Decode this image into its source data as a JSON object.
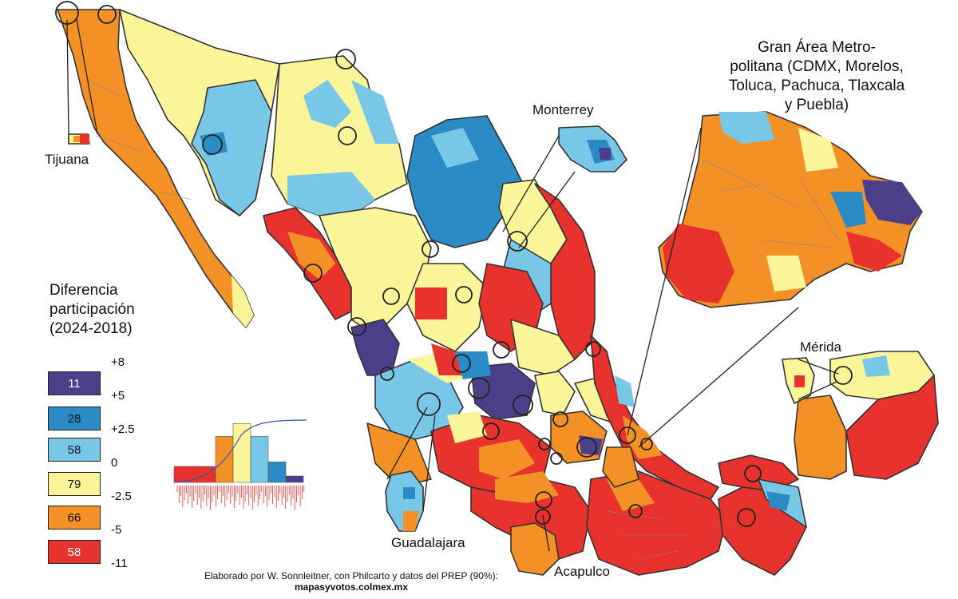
{
  "legend": {
    "title_lines": [
      "Diferencia",
      "participación",
      "(2024-2018)"
    ],
    "classes": [
      {
        "count": "11",
        "color": "#4b3f8a",
        "text_color": "#ffffff"
      },
      {
        "count": "28",
        "color": "#2b8bc4",
        "text_color": "#111111"
      },
      {
        "count": "58",
        "color": "#79c7e6",
        "text_color": "#111111"
      },
      {
        "count": "79",
        "color": "#fbf59a",
        "text_color": "#111111"
      },
      {
        "count": "66",
        "color": "#f39126",
        "text_color": "#111111"
      },
      {
        "count": "58",
        "color": "#e8322d",
        "text_color": "#ffffff"
      }
    ],
    "breaks": [
      "+8",
      "+5",
      "+2.5",
      "0",
      "-2.5",
      "-5",
      "-11"
    ]
  },
  "histogram": {
    "bar_heights_relative": [
      0.25,
      0.72,
      0.92,
      0.72,
      0.32,
      0.1
    ],
    "first_bar_extra": 0.25
  },
  "labels": {
    "tijuana": "Tijuana",
    "monterrey": "Monterrey",
    "merida": "Mérida",
    "guadalajara": "Guadalajara",
    "acapulco": "Acapulco",
    "metro_title": [
      "Gran Área Metro-",
      "politana (CDMX, Morelos,",
      "Toluca, Pachuca, Tlaxcala",
      "y Puebla)"
    ]
  },
  "credit": {
    "line1": "Elaborado por W. Sonnleitner, con Philcarto y datos del PREP (90%):",
    "line2": "mapasyvotos.colmex.mx"
  }
}
